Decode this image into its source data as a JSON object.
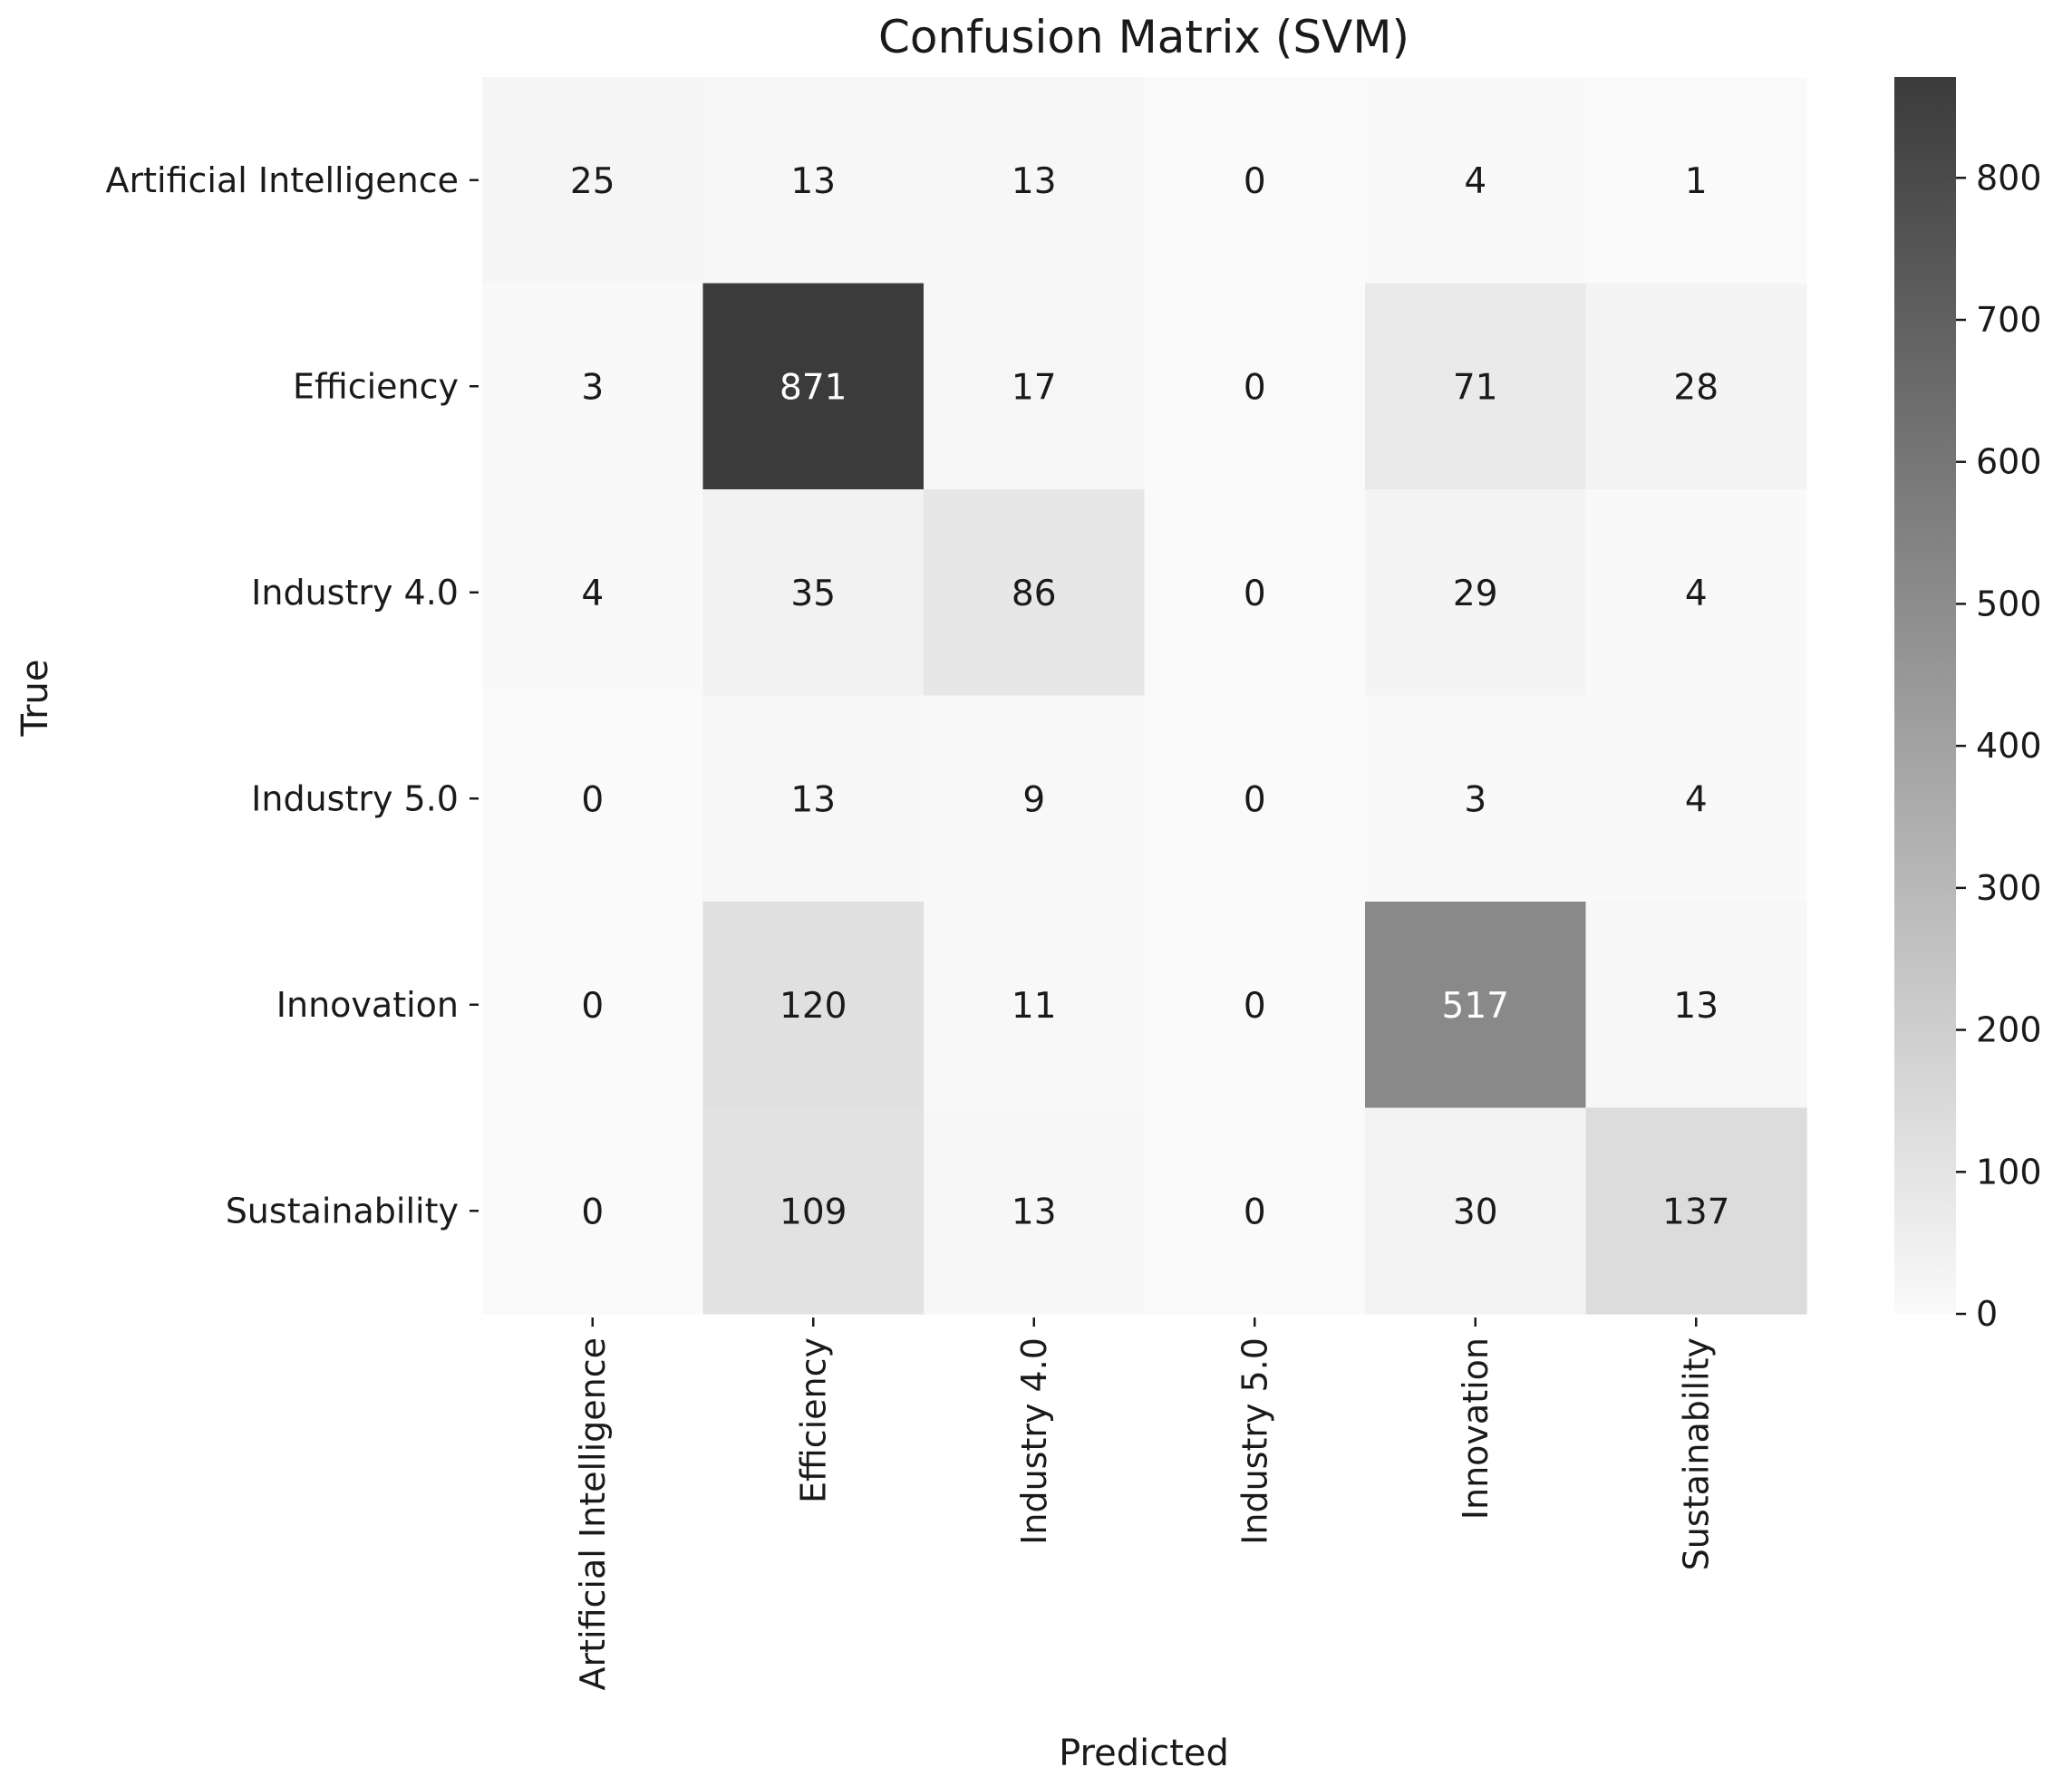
{
  "chart_data": {
    "type": "heatmap",
    "title": "Confusion Matrix (SVM)",
    "xlabel": "Predicted",
    "ylabel": "True",
    "x_categories": [
      "Artificial Intelligence",
      "Efficiency",
      "Industry 4.0",
      "Industry 5.0",
      "Innovation",
      "Sustainability"
    ],
    "y_categories": [
      "Artificial Intelligence",
      "Efficiency",
      "Industry 4.0",
      "Industry 5.0",
      "Innovation",
      "Sustainability"
    ],
    "values": [
      [
        25,
        13,
        13,
        0,
        4,
        1
      ],
      [
        3,
        871,
        17,
        0,
        71,
        28
      ],
      [
        4,
        35,
        86,
        0,
        29,
        4
      ],
      [
        0,
        13,
        9,
        0,
        3,
        4
      ],
      [
        0,
        120,
        11,
        0,
        517,
        13
      ],
      [
        0,
        109,
        13,
        0,
        30,
        137
      ]
    ],
    "colorbar": {
      "range": [
        0,
        871
      ],
      "ticks": [
        0,
        100,
        200,
        300,
        400,
        500,
        600,
        700,
        800
      ],
      "color_low": "#fafafa",
      "color_high": "#3b3b3b"
    },
    "grid": false,
    "legend": "colorbar-right"
  }
}
